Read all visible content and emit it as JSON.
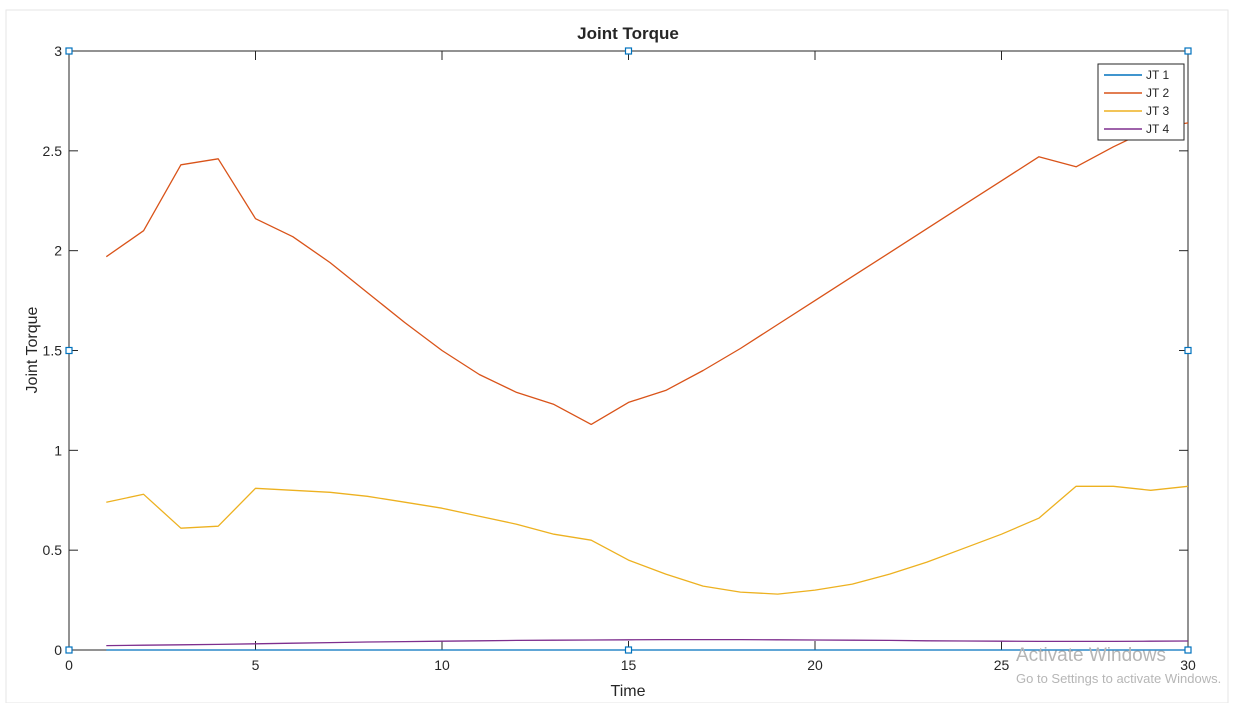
{
  "chart_data": {
    "type": "line",
    "title": "Joint Torque",
    "xlabel": "Time",
    "ylabel": "Joint Torque",
    "xlim": [
      0,
      30
    ],
    "ylim": [
      0,
      3
    ],
    "xticks": [
      0,
      5,
      10,
      15,
      20,
      25,
      30
    ],
    "yticks": [
      0,
      0.5,
      1,
      1.5,
      2,
      2.5,
      3
    ],
    "ytick_labels": [
      "0",
      "0.5",
      "1",
      "1.5",
      "2",
      "2.5",
      "3"
    ],
    "grid": false,
    "legend_position": "top-right",
    "x": [
      1,
      2,
      3,
      4,
      5,
      6,
      7,
      8,
      9,
      10,
      11,
      12,
      13,
      14,
      15,
      16,
      17,
      18,
      19,
      20,
      21,
      22,
      23,
      24,
      25,
      26,
      27,
      28,
      29,
      30
    ],
    "series": [
      {
        "name": "JT 1",
        "color": "#0072bd",
        "values": [
          0,
          0,
          0,
          0,
          0,
          0,
          0,
          0,
          0,
          0,
          0,
          0,
          0,
          0,
          0,
          0,
          0,
          0,
          0,
          0,
          0,
          0,
          0,
          0,
          0,
          0,
          0,
          0,
          0,
          0
        ]
      },
      {
        "name": "JT 2",
        "color": "#d95319",
        "values": [
          1.97,
          2.1,
          2.43,
          2.46,
          2.16,
          2.07,
          1.94,
          1.79,
          1.64,
          1.5,
          1.38,
          1.29,
          1.23,
          1.13,
          1.24,
          1.3,
          1.4,
          1.51,
          1.63,
          1.75,
          1.87,
          1.99,
          2.11,
          2.23,
          2.35,
          2.47,
          2.42,
          2.52,
          2.61,
          2.64
        ]
      },
      {
        "name": "JT 3",
        "color": "#edb120",
        "values": [
          0.74,
          0.78,
          0.61,
          0.62,
          0.81,
          0.8,
          0.79,
          0.77,
          0.74,
          0.71,
          0.67,
          0.63,
          0.58,
          0.55,
          0.45,
          0.38,
          0.32,
          0.29,
          0.28,
          0.3,
          0.33,
          0.38,
          0.44,
          0.51,
          0.58,
          0.66,
          0.82,
          0.82,
          0.8,
          0.82
        ]
      },
      {
        "name": "JT 4",
        "color": "#7e2f8e",
        "values": [
          0.022,
          0.024,
          0.026,
          0.028,
          0.031,
          0.034,
          0.037,
          0.04,
          0.042,
          0.044,
          0.046,
          0.048,
          0.049,
          0.05,
          0.051,
          0.052,
          0.052,
          0.052,
          0.051,
          0.05,
          0.049,
          0.048,
          0.046,
          0.045,
          0.044,
          0.043,
          0.043,
          0.043,
          0.044,
          0.045
        ]
      }
    ],
    "selection_handle_color": "#0072bd"
  },
  "overlay": {
    "title": "Activate Windows",
    "subtitle": "Go to Settings to activate Windows."
  }
}
